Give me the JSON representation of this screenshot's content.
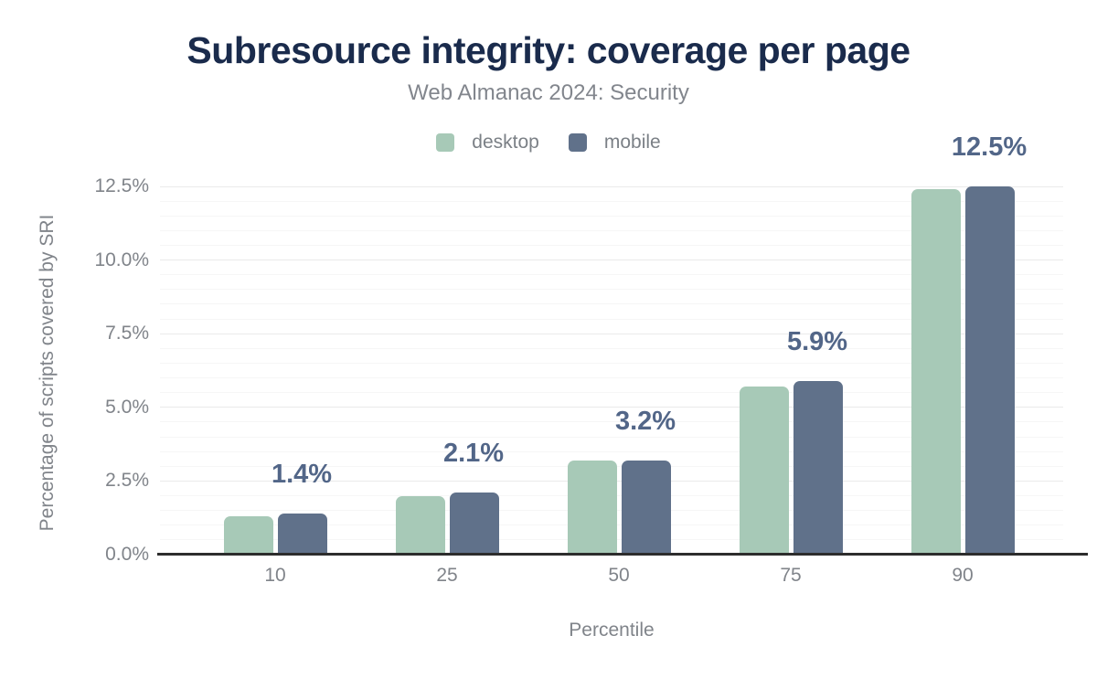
{
  "figure": {
    "title": "Subresource integrity: coverage per page",
    "subtitle": "Web Almanac 2024: Security"
  },
  "legend": {
    "position": "top",
    "items": [
      {
        "label": "desktop",
        "color": "#a7c9b7"
      },
      {
        "label": "mobile",
        "color": "#60718a"
      }
    ]
  },
  "chart_data": {
    "type": "bar",
    "title": "Subresource integrity: coverage per page",
    "subtitle": "Web Almanac 2024: Security",
    "categories": [
      "10",
      "25",
      "50",
      "75",
      "90"
    ],
    "series": [
      {
        "name": "desktop",
        "color": "#a7c9b7",
        "values": [
          1.3,
          2.0,
          3.2,
          5.7,
          12.4
        ]
      },
      {
        "name": "mobile",
        "color": "#60718a",
        "values": [
          1.4,
          2.1,
          3.2,
          5.9,
          12.5
        ]
      }
    ],
    "data_labels": [
      "1.4%",
      "2.1%",
      "3.2%",
      "5.9%",
      "12.5%"
    ],
    "data_labels_series": "mobile",
    "xlabel": "Percentile",
    "ylabel": "Percentage of scripts covered by SRI",
    "ylim": [
      0,
      12.5
    ],
    "yticks": [
      "0.0%",
      "2.5%",
      "5.0%",
      "7.5%",
      "10.0%",
      "12.5%"
    ],
    "ytick_step_major": 2.5,
    "ytick_step_minor": 0.5,
    "grid": "horizontal",
    "legend_position": "top"
  },
  "colors": {
    "background": "#ffffff",
    "title": "#1a2b4c",
    "subtitle": "#82868d",
    "axis_text": "#80848a",
    "legend_text": "#7b8086",
    "data_label": "#526688",
    "axis_line": "#2d2d2d",
    "grid_major": "#eaeaea",
    "grid_minor": "#f6f6f6"
  }
}
